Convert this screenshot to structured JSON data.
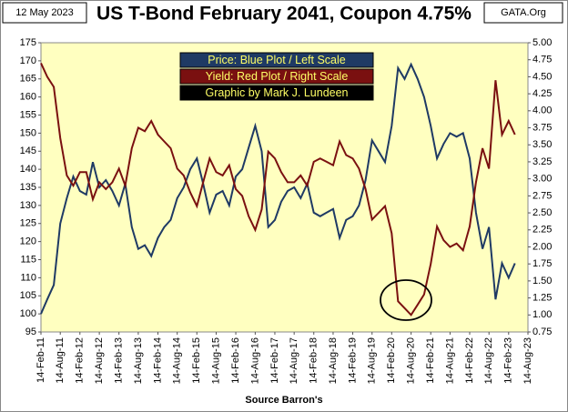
{
  "chart_data": {
    "type": "line",
    "title": "US T-Bond February 2041, Coupon 4.75%",
    "date_label": "12 May 2023",
    "source_site": "GATA.Org",
    "x_label": "Source Barron's",
    "credit": "Graphic by Mark J. Lundeen",
    "x": [
      "2011-02-14",
      "2011-04-14",
      "2011-06-14",
      "2011-08-14",
      "2011-10-14",
      "2011-12-14",
      "2012-02-14",
      "2012-04-14",
      "2012-06-14",
      "2012-08-14",
      "2012-10-14",
      "2012-12-14",
      "2013-02-14",
      "2013-04-14",
      "2013-06-14",
      "2013-08-14",
      "2013-10-14",
      "2013-12-14",
      "2014-02-14",
      "2014-04-14",
      "2014-06-14",
      "2014-08-14",
      "2014-10-14",
      "2014-12-14",
      "2015-02-14",
      "2015-04-14",
      "2015-06-14",
      "2015-08-14",
      "2015-10-14",
      "2015-12-14",
      "2016-02-14",
      "2016-04-14",
      "2016-06-14",
      "2016-08-14",
      "2016-10-14",
      "2016-12-14",
      "2017-02-14",
      "2017-04-14",
      "2017-06-14",
      "2017-08-14",
      "2017-10-14",
      "2017-12-14",
      "2018-02-14",
      "2018-04-14",
      "2018-06-14",
      "2018-08-14",
      "2018-10-14",
      "2018-12-14",
      "2019-02-14",
      "2019-04-14",
      "2019-06-14",
      "2019-08-14",
      "2019-10-14",
      "2019-12-14",
      "2020-02-14",
      "2020-04-14",
      "2020-06-14",
      "2020-08-14",
      "2020-10-14",
      "2020-12-14",
      "2021-02-14",
      "2021-04-14",
      "2021-06-14",
      "2021-08-14",
      "2021-10-14",
      "2021-12-14",
      "2022-02-14",
      "2022-04-14",
      "2022-06-14",
      "2022-08-14",
      "2022-10-14",
      "2022-12-14",
      "2023-02-14",
      "2023-04-14"
    ],
    "series": [
      {
        "name": "Price:  Blue Plot / Left Scale",
        "color": "#1f3a64",
        "label_bg": "#1f3a64",
        "label_color": "#ffff66",
        "axis": "y",
        "values": [
          100,
          104,
          108,
          125,
          132,
          138,
          134,
          133,
          142,
          135,
          137,
          134,
          130,
          136,
          124,
          118,
          119,
          116,
          121,
          124,
          126,
          132,
          135,
          140,
          143,
          136,
          128,
          133,
          134,
          130,
          138,
          140,
          146,
          152,
          145,
          124,
          126,
          131,
          134,
          135,
          132,
          136,
          128,
          127,
          128,
          129,
          121,
          126,
          127,
          130,
          137,
          148,
          145,
          142,
          152,
          168,
          165,
          169,
          165,
          160,
          152,
          143,
          147,
          150,
          149,
          150,
          143,
          128,
          118,
          124,
          104,
          114,
          110,
          114
        ]
      },
      {
        "name": "Yield:  Red Plot / Right Scale",
        "color": "#7a1010",
        "label_bg": "#7a1010",
        "label_color": "#ffff66",
        "axis": "y2",
        "values": [
          4.7,
          4.5,
          4.35,
          3.6,
          3.05,
          2.9,
          3.1,
          3.1,
          2.7,
          2.95,
          2.85,
          2.95,
          3.15,
          2.9,
          3.45,
          3.75,
          3.7,
          3.85,
          3.65,
          3.55,
          3.45,
          3.15,
          3.05,
          2.8,
          2.6,
          2.95,
          3.3,
          3.1,
          3.05,
          3.2,
          2.85,
          2.75,
          2.45,
          2.25,
          2.55,
          3.4,
          3.3,
          3.1,
          2.95,
          2.95,
          3.05,
          2.9,
          3.25,
          3.3,
          3.25,
          3.2,
          3.55,
          3.35,
          3.3,
          3.15,
          2.85,
          2.4,
          2.5,
          2.6,
          2.2,
          1.2,
          1.1,
          1.0,
          1.15,
          1.3,
          1.75,
          2.3,
          2.1,
          2.0,
          2.05,
          1.95,
          2.3,
          2.95,
          3.45,
          3.15,
          4.45,
          3.65,
          3.85,
          3.65
        ]
      }
    ],
    "xlim": [
      "2011-02-14",
      "2023-08-14"
    ],
    "xticks": [
      {
        "value": "2011-02-14",
        "label": "14-Feb-11"
      },
      {
        "value": "2011-08-14",
        "label": "14-Aug-11"
      },
      {
        "value": "2012-02-14",
        "label": "14-Feb-12"
      },
      {
        "value": "2012-08-14",
        "label": "14-Aug-12"
      },
      {
        "value": "2013-02-14",
        "label": "14-Feb-13"
      },
      {
        "value": "2013-08-14",
        "label": "14-Aug-13"
      },
      {
        "value": "2014-02-14",
        "label": "14-Feb-14"
      },
      {
        "value": "2014-08-14",
        "label": "14-Aug-14"
      },
      {
        "value": "2015-02-14",
        "label": "14-Feb-15"
      },
      {
        "value": "2015-08-14",
        "label": "14-Aug-15"
      },
      {
        "value": "2016-02-14",
        "label": "14-Feb-16"
      },
      {
        "value": "2016-08-14",
        "label": "14-Aug-16"
      },
      {
        "value": "2017-02-14",
        "label": "14-Feb-17"
      },
      {
        "value": "2017-08-14",
        "label": "14-Aug-17"
      },
      {
        "value": "2018-02-14",
        "label": "14-Feb-18"
      },
      {
        "value": "2018-08-14",
        "label": "14-Aug-18"
      },
      {
        "value": "2019-02-14",
        "label": "14-Feb-19"
      },
      {
        "value": "2019-08-14",
        "label": "14-Aug-19"
      },
      {
        "value": "2020-02-14",
        "label": "14-Feb-20"
      },
      {
        "value": "2020-08-14",
        "label": "14-Aug-20"
      },
      {
        "value": "2021-02-14",
        "label": "14-Feb-21"
      },
      {
        "value": "2021-08-14",
        "label": "14-Aug-21"
      },
      {
        "value": "2022-02-14",
        "label": "14-Feb-22"
      },
      {
        "value": "2022-08-14",
        "label": "14-Aug-22"
      },
      {
        "value": "2023-02-14",
        "label": "14-Feb-23"
      },
      {
        "value": "2023-08-14",
        "label": "14-Aug-23"
      }
    ],
    "ylim": [
      95,
      175
    ],
    "yticks": [
      95,
      100,
      105,
      110,
      115,
      120,
      125,
      130,
      135,
      140,
      145,
      150,
      155,
      160,
      165,
      170,
      175
    ],
    "y2lim": [
      0.75,
      5.0
    ],
    "y2ticks": [
      {
        "value": 0.75,
        "label": "0.75"
      },
      {
        "value": 1,
        "label": "1.00"
      },
      {
        "value": 1.25,
        "label": "1.25"
      },
      {
        "value": 1.5,
        "label": "1.50"
      },
      {
        "value": 1.75,
        "label": "1.75"
      },
      {
        "value": 2,
        "label": "2.00"
      },
      {
        "value": 2.25,
        "label": "2.25"
      },
      {
        "value": 2.5,
        "label": "2.50"
      },
      {
        "value": 2.75,
        "label": "2.75"
      },
      {
        "value": 3,
        "label": "3.00"
      },
      {
        "value": 3.25,
        "label": "3.25"
      },
      {
        "value": 3.5,
        "label": "3.50"
      },
      {
        "value": 3.75,
        "label": "3.75"
      },
      {
        "value": 4,
        "label": "4.00"
      },
      {
        "value": 4.25,
        "label": "4.25"
      },
      {
        "value": 4.5,
        "label": "4.50"
      },
      {
        "value": 4.75,
        "label": "4.75"
      },
      {
        "value": 5,
        "label": "5.00"
      }
    ],
    "grid": false,
    "plot_bg": "#ffffc0"
  }
}
